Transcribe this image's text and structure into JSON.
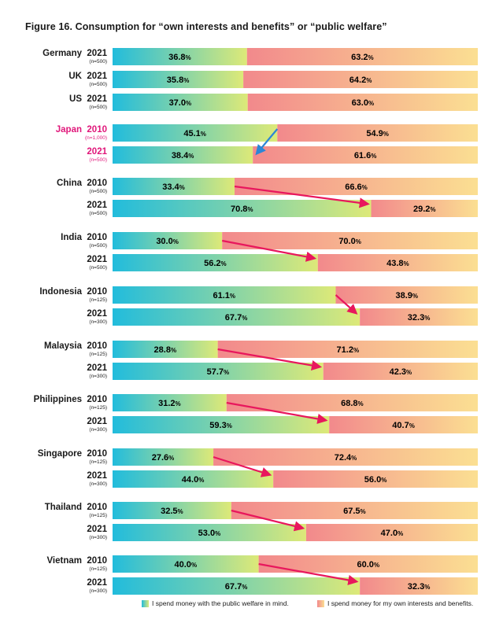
{
  "figure_title": "Figure 16.  Consumption for “own interests and benefits” or “public welfare”",
  "legend": {
    "public": "I spend money with the public welfare in mind.",
    "own": "I spend money for my own interests and benefits."
  },
  "colors": {
    "public_start": "#22bcdc",
    "public_end": "#dde978",
    "own_start": "#f2898c",
    "own_end": "#fbdf92",
    "highlight_text": "#e0177a",
    "arrow_pink": "#e8175d",
    "arrow_blue": "#2c86d6"
  },
  "chart_data": {
    "type": "bar",
    "title": "Figure 16.  Consumption for “own interests and benefits” or “public welfare”",
    "stacked": true,
    "orientation": "horizontal",
    "xlim": [
      0,
      100
    ],
    "series_names": [
      "I spend money with the public welfare in mind.",
      "I spend money for my own interests and benefits."
    ],
    "groups": [
      {
        "country": "Germany",
        "rows": [
          {
            "year": "2021",
            "n": "(n=500)",
            "public": 36.8,
            "own": 63.2
          }
        ]
      },
      {
        "country": "UK",
        "rows": [
          {
            "year": "2021",
            "n": "(n=500)",
            "public": 35.8,
            "own": 64.2
          }
        ]
      },
      {
        "country": "US",
        "rows": [
          {
            "year": "2021",
            "n": "(n=500)",
            "public": 37.0,
            "own": 63.0
          }
        ]
      },
      {
        "country": "Japan",
        "highlight": true,
        "arrow": "blue",
        "rows": [
          {
            "year": "2010",
            "n": "(n=1,000)",
            "public": 45.1,
            "own": 54.9
          },
          {
            "year": "2021",
            "n": "(n=500)",
            "public": 38.4,
            "own": 61.6
          }
        ]
      },
      {
        "country": "China",
        "arrow": "pink",
        "rows": [
          {
            "year": "2010",
            "n": "(n=500)",
            "public": 33.4,
            "own": 66.6
          },
          {
            "year": "2021",
            "n": "(n=500)",
            "public": 70.8,
            "own": 29.2
          }
        ]
      },
      {
        "country": "India",
        "arrow": "pink",
        "rows": [
          {
            "year": "2010",
            "n": "(n=500)",
            "public": 30.0,
            "own": 70.0
          },
          {
            "year": "2021",
            "n": "(n=500)",
            "public": 56.2,
            "own": 43.8
          }
        ]
      },
      {
        "country": "Indonesia",
        "arrow": "pink",
        "rows": [
          {
            "year": "2010",
            "n": "(n=125)",
            "public": 61.1,
            "own": 38.9
          },
          {
            "year": "2021",
            "n": "(n=300)",
            "public": 67.7,
            "own": 32.3
          }
        ]
      },
      {
        "country": "Malaysia",
        "arrow": "pink",
        "rows": [
          {
            "year": "2010",
            "n": "(n=125)",
            "public": 28.8,
            "own": 71.2
          },
          {
            "year": "2021",
            "n": "(n=300)",
            "public": 57.7,
            "own": 42.3
          }
        ]
      },
      {
        "country": "Philippines",
        "arrow": "pink",
        "rows": [
          {
            "year": "2010",
            "n": "(n=125)",
            "public": 31.2,
            "own": 68.8
          },
          {
            "year": "2021",
            "n": "(n=300)",
            "public": 59.3,
            "own": 40.7
          }
        ]
      },
      {
        "country": "Singapore",
        "arrow": "pink",
        "rows": [
          {
            "year": "2010",
            "n": "(n=125)",
            "public": 27.6,
            "own": 72.4
          },
          {
            "year": "2021",
            "n": "(n=300)",
            "public": 44.0,
            "own": 56.0
          }
        ]
      },
      {
        "country": "Thailand",
        "arrow": "pink",
        "rows": [
          {
            "year": "2010",
            "n": "(n=125)",
            "public": 32.5,
            "own": 67.5
          },
          {
            "year": "2021",
            "n": "(n=300)",
            "public": 53.0,
            "own": 47.0
          }
        ]
      },
      {
        "country": "Vietnam",
        "arrow": "pink",
        "rows": [
          {
            "year": "2010",
            "n": "(n=125)",
            "public": 40.0,
            "own": 60.0
          },
          {
            "year": "2021",
            "n": "(n=300)",
            "public": 67.7,
            "own": 32.3
          }
        ]
      }
    ]
  }
}
